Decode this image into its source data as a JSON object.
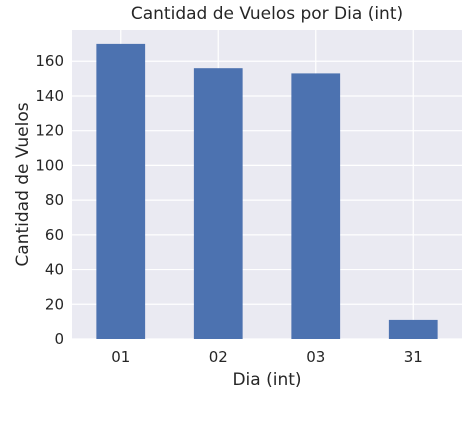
{
  "chart_data": {
    "type": "bar",
    "title": "Cantidad de Vuelos por Dia (int)",
    "xlabel": "Dia (int)",
    "ylabel": "Cantidad de Vuelos",
    "categories": [
      "01",
      "02",
      "03",
      "31"
    ],
    "values": [
      170,
      156,
      153,
      11
    ],
    "ylim": [
      0,
      178
    ],
    "yticks": [
      0,
      20,
      40,
      60,
      80,
      100,
      120,
      140,
      160
    ],
    "grid": true,
    "legend": "none",
    "colors": {
      "bar": "#4c72b0",
      "plot_background": "#eaeaf2",
      "grid": "#ffffff",
      "text": "#262626"
    }
  }
}
